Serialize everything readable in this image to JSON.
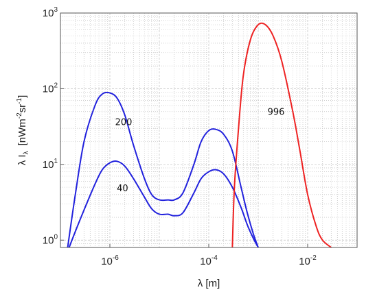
{
  "chart_data": {
    "type": "line",
    "title": "",
    "xlabel": "λ [m]",
    "ylabel": "λ I",
    "ylabel_sub": "λ",
    "ylabel_units": "[nWm",
    "ylabel_units_exp1": "-2",
    "ylabel_units_mid": "sr",
    "ylabel_units_exp2": "-1",
    "ylabel_units_end": "]",
    "x_scale": "log",
    "y_scale": "log",
    "xlim": [
      1e-07,
      0.1
    ],
    "ylim": [
      0.8,
      1000
    ],
    "grid": true,
    "x_ticks": [
      {
        "value": 1e-06,
        "base": "10",
        "exp": "-6"
      },
      {
        "value": 0.0001,
        "base": "10",
        "exp": "-4"
      },
      {
        "value": 0.01,
        "base": "10",
        "exp": "-2"
      }
    ],
    "y_ticks": [
      {
        "value": 1,
        "base": "10",
        "exp": "0"
      },
      {
        "value": 10,
        "base": "10",
        "exp": "1"
      },
      {
        "value": 100,
        "base": "10",
        "exp": "2"
      },
      {
        "value": 1000,
        "base": "10",
        "exp": "3"
      }
    ],
    "series": [
      {
        "label": "200",
        "color": "#2222dd",
        "x": [
          1.4e-07,
          2e-07,
          3e-07,
          5e-07,
          7e-07,
          1e-06,
          1.4e-06,
          2e-06,
          3e-06,
          5e-06,
          7e-06,
          1e-05,
          1.5e-05,
          2e-05,
          3e-05,
          5e-05,
          7e-05,
          0.0001,
          0.00014,
          0.0002,
          0.0003,
          0.00045,
          0.0006,
          0.0008,
          0.001
        ],
        "y": [
          0.8,
          4,
          20,
          60,
          85,
          88,
          75,
          45,
          18,
          6.5,
          4,
          3.4,
          3.4,
          3.4,
          4.2,
          10,
          20,
          28,
          29,
          25,
          15,
          5,
          2.3,
          1.2,
          0.8
        ]
      },
      {
        "label": "40",
        "color": "#2222dd",
        "x": [
          1.5e-07,
          2e-07,
          3e-07,
          5e-07,
          7e-07,
          1e-06,
          1.4e-06,
          2e-06,
          3e-06,
          5e-06,
          7e-06,
          1e-05,
          1.5e-05,
          2e-05,
          3e-05,
          5e-05,
          7e-05,
          0.0001,
          0.00014,
          0.0002,
          0.0003,
          0.00045,
          0.0006,
          0.0008,
          0.001
        ],
        "y": [
          0.8,
          1.3,
          2.5,
          5.5,
          8.5,
          10.5,
          11,
          9.5,
          6.5,
          3.7,
          2.6,
          2.2,
          2.2,
          2.1,
          2.3,
          4.2,
          6.5,
          8,
          8.5,
          7.5,
          5,
          2.7,
          1.6,
          1.05,
          0.8
        ]
      },
      {
        "label": "996",
        "color": "#ee2222",
        "x": [
          0.0003,
          0.00033,
          0.0004,
          0.0005,
          0.0007,
          0.001,
          0.0014,
          0.002,
          0.003,
          0.005,
          0.007,
          0.01,
          0.015,
          0.02,
          0.03
        ],
        "y": [
          0.8,
          5,
          30,
          150,
          450,
          700,
          700,
          500,
          230,
          50,
          15,
          4,
          1.5,
          1,
          0.8
        ]
      }
    ],
    "annotations": [
      {
        "text": "200",
        "x": 1.9e-06,
        "y": 33
      },
      {
        "text": "40",
        "x": 1.8e-06,
        "y": 4.4
      },
      {
        "text": "996",
        "x": 0.0023,
        "y": 45
      }
    ],
    "colors": {
      "blue": "#2222dd",
      "red": "#ee2222",
      "grid": "#c8c8c8",
      "frame": "#555555"
    }
  }
}
